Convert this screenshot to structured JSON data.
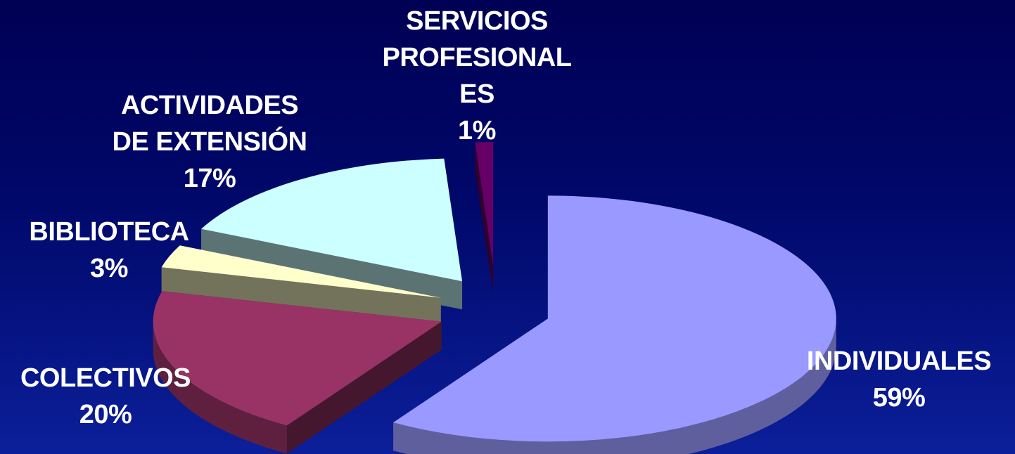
{
  "chart_data": {
    "type": "pie",
    "slices": [
      {
        "label": "INDIVIDUALES",
        "value": 59,
        "pct_text": "59%",
        "color": "#9999ff"
      },
      {
        "label": "COLECTIVOS",
        "value": 20,
        "pct_text": "20%",
        "color": "#993366"
      },
      {
        "label": "BIBLIOTECA",
        "value": 3,
        "pct_text": "3%",
        "color": "#ffffcc"
      },
      {
        "label": "ACTIVIDADES DE EXTENSIÓN",
        "value": 17,
        "pct_text": "17%",
        "color": "#ccffff"
      },
      {
        "label": "SERVICIOS PROFESIONALES",
        "value": 1,
        "pct_text": "1%",
        "color": "#660066"
      }
    ],
    "labels": {
      "individuales": [
        "INDIVIDUALES",
        "59%"
      ],
      "colectivos": [
        "COLECTIVOS",
        "20%"
      ],
      "biblioteca": [
        "BIBLIOTECA",
        "3%"
      ],
      "actividades": [
        "ACTIVIDADES",
        "DE EXTENSIÓN",
        "17%"
      ],
      "servicios": [
        "SERVICIOS",
        "PROFESIONAL",
        "ES",
        "1%"
      ]
    },
    "style": "3d-exploded",
    "legend": "none"
  }
}
